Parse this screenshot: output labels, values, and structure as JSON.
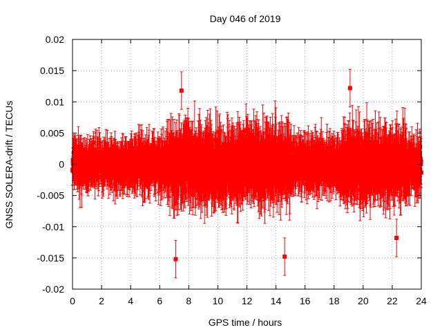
{
  "chart_data": {
    "type": "scatter",
    "title": "Day 046 of 2019",
    "xlabel": "GPS time / hours",
    "ylabel": "GNSS SOLERA-drift / TECUs",
    "xlim": [
      0,
      24
    ],
    "ylim": [
      -0.02,
      0.02
    ],
    "grid": true,
    "x_ticks": [
      0,
      2,
      4,
      6,
      8,
      10,
      12,
      14,
      16,
      18,
      20,
      22,
      24
    ],
    "x_tick_labels": [
      "0",
      "2",
      "4",
      "6",
      "8",
      "10",
      "12",
      "14",
      "16",
      "18",
      "20",
      "22",
      "24"
    ],
    "y_ticks": [
      -0.02,
      -0.015,
      -0.01,
      -0.005,
      0,
      0.005,
      0.01,
      0.015,
      0.02
    ],
    "y_tick_labels": [
      "-0.02",
      "-0.015",
      "-0.01",
      "-0.005",
      "0",
      "0.005",
      "0.01",
      "0.015",
      "0.02"
    ],
    "series": [
      {
        "name": "SOLERA drift",
        "color": "#ff0000",
        "marker": "square",
        "error_bars": true,
        "x_start": 0,
        "x_end": 24,
        "x_step": 0.0125,
        "approx_scatter_half_range": 0.0045,
        "approx_error_half_width": 0.0035,
        "notable_points": [
          {
            "x": 7.1,
            "y": -0.0152
          },
          {
            "x": 7.5,
            "y": 0.0118
          },
          {
            "x": 14.6,
            "y": -0.0148
          },
          {
            "x": 19.1,
            "y": 0.0122
          },
          {
            "x": 22.3,
            "y": -0.0118
          }
        ]
      }
    ]
  }
}
